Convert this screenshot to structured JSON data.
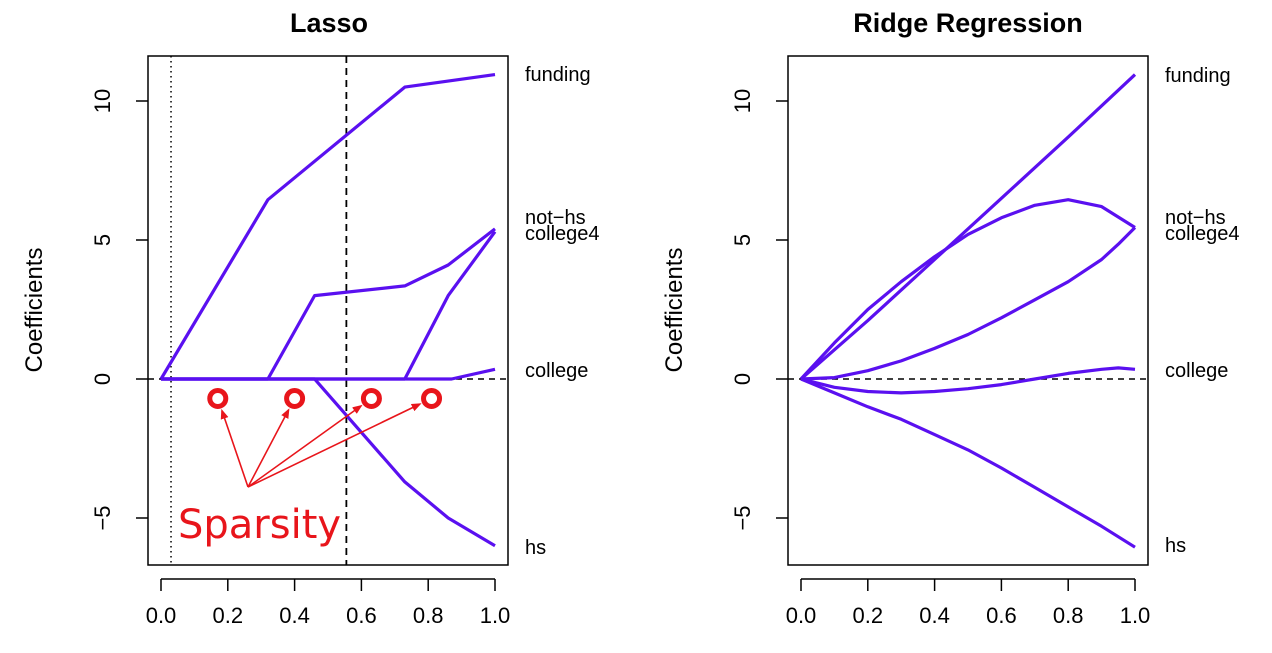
{
  "chart_data": [
    {
      "type": "line",
      "title": "Lasso",
      "xlabel": "",
      "ylabel": "Coefficients",
      "xlim": [
        0.0,
        1.0
      ],
      "ylim": [
        -6.5,
        11.8
      ],
      "x_ticks": [
        "0.0",
        "0.2",
        "0.4",
        "0.6",
        "0.8",
        "1.0"
      ],
      "y_ticks": [
        "-5",
        "0",
        "5",
        "10"
      ],
      "line_color": "#5a10f0",
      "zero_line": true,
      "vlines": [
        {
          "x": 0.03,
          "style": "dotted"
        },
        {
          "x": 0.555,
          "style": "dashed"
        }
      ],
      "series": [
        {
          "name": "funding",
          "points": [
            [
              0.0,
              0.0
            ],
            [
              0.32,
              6.45
            ],
            [
              0.73,
              10.5
            ],
            [
              1.0,
              10.95
            ]
          ]
        },
        {
          "name": "not-hs",
          "points": [
            [
              0.0,
              0.0
            ],
            [
              0.32,
              0.0
            ],
            [
              0.46,
              3.0
            ],
            [
              0.73,
              3.35
            ],
            [
              0.86,
              4.1
            ],
            [
              1.0,
              5.4
            ]
          ]
        },
        {
          "name": "college4",
          "points": [
            [
              0.0,
              0.0
            ],
            [
              0.73,
              0.0
            ],
            [
              0.86,
              3.0
            ],
            [
              1.0,
              5.3
            ]
          ]
        },
        {
          "name": "college",
          "points": [
            [
              0.0,
              0.0
            ],
            [
              0.87,
              0.0
            ],
            [
              1.0,
              0.35
            ]
          ]
        },
        {
          "name": "hs",
          "points": [
            [
              0.0,
              0.0
            ],
            [
              0.46,
              0.0
            ],
            [
              0.73,
              -3.7
            ],
            [
              0.86,
              -5.0
            ],
            [
              1.0,
              -6.0
            ]
          ]
        }
      ],
      "annotation": {
        "text": "Sparsity",
        "color": "#e8151b",
        "markers_x": [
          0.17,
          0.4,
          0.63,
          0.81
        ],
        "markers_y": -0.7
      }
    },
    {
      "type": "line",
      "title": "Ridge Regression",
      "xlabel": "",
      "ylabel": "Coefficients",
      "xlim": [
        0.0,
        1.0
      ],
      "ylim": [
        -6.5,
        11.8
      ],
      "x_ticks": [
        "0.0",
        "0.2",
        "0.4",
        "0.6",
        "0.8",
        "1.0"
      ],
      "y_ticks": [
        "-5",
        "0",
        "5",
        "10"
      ],
      "line_color": "#5a10f0",
      "zero_line": true,
      "series": [
        {
          "name": "funding",
          "points": [
            [
              0.0,
              0.0
            ],
            [
              0.2,
              2.1
            ],
            [
              0.4,
              4.3
            ],
            [
              0.6,
              6.5
            ],
            [
              0.8,
              8.7
            ],
            [
              1.0,
              10.95
            ]
          ]
        },
        {
          "name": "not-hs",
          "points": [
            [
              0.0,
              0.0
            ],
            [
              0.1,
              1.3
            ],
            [
              0.2,
              2.5
            ],
            [
              0.3,
              3.5
            ],
            [
              0.4,
              4.4
            ],
            [
              0.5,
              5.2
            ],
            [
              0.6,
              5.8
            ],
            [
              0.7,
              6.25
            ],
            [
              0.8,
              6.45
            ],
            [
              0.9,
              6.2
            ],
            [
              1.0,
              5.45
            ]
          ]
        },
        {
          "name": "college4",
          "points": [
            [
              0.0,
              0.0
            ],
            [
              0.1,
              0.05
            ],
            [
              0.2,
              0.3
            ],
            [
              0.3,
              0.65
            ],
            [
              0.4,
              1.1
            ],
            [
              0.5,
              1.6
            ],
            [
              0.6,
              2.2
            ],
            [
              0.7,
              2.85
            ],
            [
              0.8,
              3.5
            ],
            [
              0.9,
              4.3
            ],
            [
              0.95,
              4.85
            ],
            [
              1.0,
              5.45
            ]
          ]
        },
        {
          "name": "college",
          "points": [
            [
              0.0,
              0.0
            ],
            [
              0.1,
              -0.3
            ],
            [
              0.2,
              -0.45
            ],
            [
              0.3,
              -0.5
            ],
            [
              0.4,
              -0.45
            ],
            [
              0.5,
              -0.35
            ],
            [
              0.6,
              -0.2
            ],
            [
              0.7,
              0.0
            ],
            [
              0.8,
              0.2
            ],
            [
              0.9,
              0.35
            ],
            [
              0.95,
              0.4
            ],
            [
              1.0,
              0.35
            ]
          ]
        },
        {
          "name": "hs",
          "points": [
            [
              0.0,
              0.0
            ],
            [
              0.1,
              -0.5
            ],
            [
              0.2,
              -1.0
            ],
            [
              0.3,
              -1.45
            ],
            [
              0.4,
              -2.0
            ],
            [
              0.5,
              -2.55
            ],
            [
              0.6,
              -3.2
            ],
            [
              0.7,
              -3.9
            ],
            [
              0.8,
              -4.6
            ],
            [
              0.9,
              -5.3
            ],
            [
              1.0,
              -6.05
            ]
          ]
        }
      ]
    }
  ],
  "labels": {
    "left": {
      "title": "Lasso",
      "ylabel": "Coefficients",
      "end_labels": [
        "funding",
        "not−hs",
        "college4",
        "college",
        "hs"
      ],
      "annotation": "Sparsity"
    },
    "right": {
      "title": "Ridge Regression",
      "ylabel": "Coefficients",
      "end_labels": [
        "funding",
        "not−hs",
        "college4",
        "college",
        "hs"
      ]
    },
    "x_ticks": [
      "0.0",
      "0.2",
      "0.4",
      "0.6",
      "0.8",
      "1.0"
    ],
    "y_ticks": [
      "−5",
      "0",
      "5",
      "10"
    ]
  }
}
